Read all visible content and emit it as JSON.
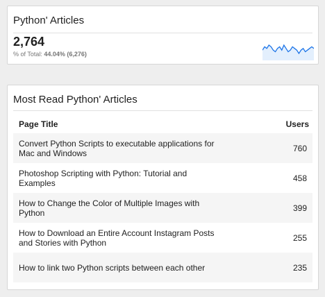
{
  "summary": {
    "title": "Python' Articles",
    "value": "2,764",
    "sub_prefix": "% of Total:",
    "sub_value": "44.04% (6,276)"
  },
  "sparkline": {
    "color": "#1a73e8",
    "fill": "#e3effd",
    "values": [
      8,
      10,
      9,
      11,
      10,
      8,
      7,
      9,
      10,
      8,
      11,
      9,
      7,
      8,
      10,
      9,
      8,
      6,
      8,
      9,
      7,
      8,
      9,
      10,
      9
    ]
  },
  "table": {
    "title": "Most Read Python' Articles",
    "columns": [
      "Page Title",
      "Users"
    ],
    "rows": [
      {
        "title": "Convert Python Scripts to executable applications for Mac and Windows",
        "users": "760"
      },
      {
        "title": "Photoshop Scripting with Python: Tutorial and Examples",
        "users": "458"
      },
      {
        "title": "How to Change the Color of Multiple Images with Python",
        "users": "399"
      },
      {
        "title": "How to Download an Entire Account Instagram Posts and Stories with Python",
        "users": "255"
      },
      {
        "title": "How to link two Python scripts between each other",
        "users": "235"
      }
    ]
  }
}
